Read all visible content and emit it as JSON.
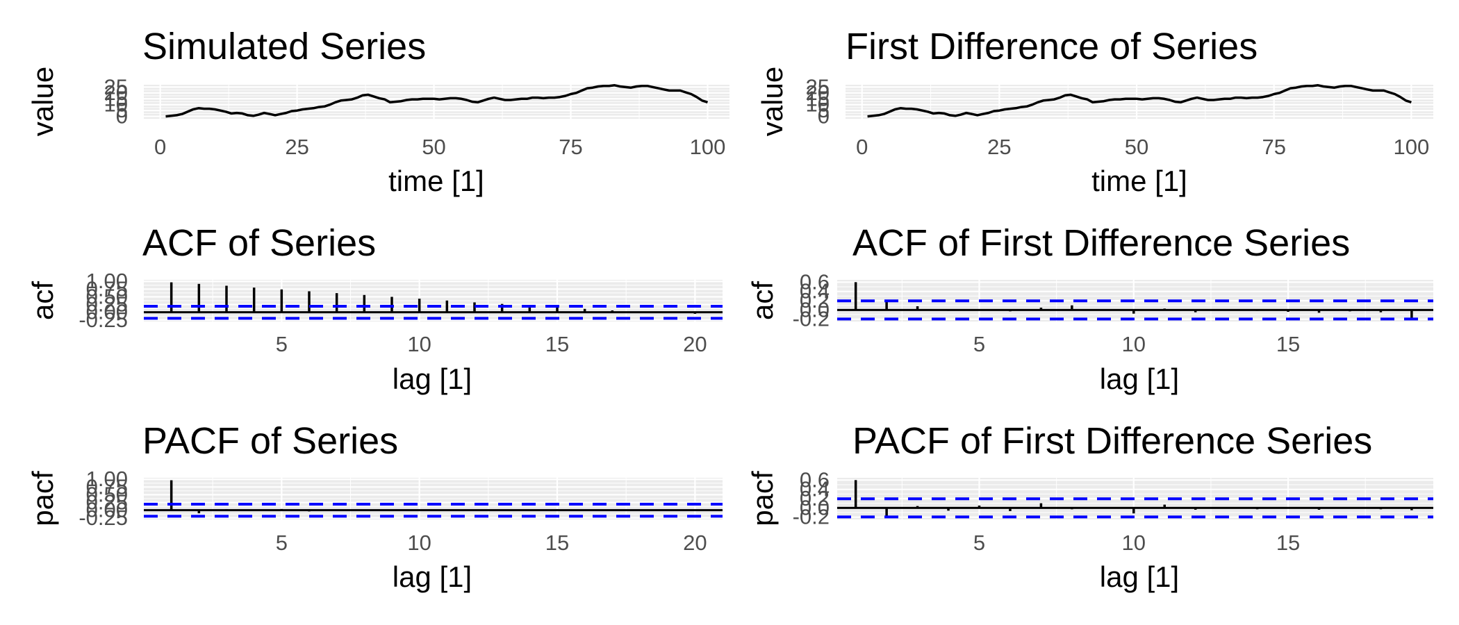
{
  "chart_data": [
    {
      "id": "p1",
      "type": "line",
      "title": "Simulated Series",
      "xlabel": "time [1]",
      "ylabel": "value",
      "xlim": [
        -3,
        104
      ],
      "ylim": [
        -2,
        27
      ],
      "xticks": [
        0,
        25,
        50,
        75,
        100
      ],
      "yticks": [
        0,
        5,
        10,
        15,
        20,
        25
      ],
      "grid": true,
      "series": [
        {
          "x": [
            1,
            2,
            3,
            4,
            5,
            6,
            7,
            8,
            9,
            10,
            11,
            12,
            13,
            14,
            15,
            16,
            17,
            18,
            19,
            20,
            21,
            22,
            23,
            24,
            25,
            26,
            27,
            28,
            29,
            30,
            31,
            32,
            33,
            34,
            35,
            36,
            37,
            38,
            39,
            40,
            41,
            42,
            43,
            44,
            45,
            46,
            47,
            48,
            49,
            50,
            51,
            52,
            53,
            54,
            55,
            56,
            57,
            58,
            59,
            60,
            61,
            62,
            63,
            64,
            65,
            66,
            67,
            68,
            69,
            70,
            71,
            72,
            73,
            74,
            75,
            76,
            77,
            78,
            79,
            80,
            81,
            82,
            83,
            84,
            85,
            86,
            87,
            88,
            89,
            90,
            91,
            92,
            93,
            94,
            95,
            96,
            97,
            98,
            99,
            100
          ],
          "values": [
            0,
            0.5,
            1,
            2,
            4,
            6,
            7,
            6.5,
            6.5,
            6,
            5,
            4,
            2.5,
            3,
            2.5,
            1,
            0.5,
            1.5,
            3,
            2,
            1,
            2,
            3,
            4.5,
            5,
            6,
            6.5,
            7,
            8,
            8.5,
            10,
            12,
            13.5,
            14,
            14.5,
            16,
            18,
            18.5,
            17,
            15.5,
            14.5,
            12,
            12.5,
            13,
            14,
            14.5,
            14.5,
            15,
            15,
            15,
            14.5,
            15,
            15.5,
            15.5,
            15,
            14,
            12.5,
            12,
            13.5,
            15,
            16,
            15,
            14,
            14,
            14.5,
            15,
            15,
            16,
            16,
            15.5,
            16,
            16,
            16.5,
            17.5,
            19,
            20,
            22,
            24,
            24.5,
            25.5,
            26,
            26,
            26.5,
            25.5,
            25,
            24.5,
            25.5,
            26,
            26,
            25,
            24,
            23,
            22,
            22,
            22,
            20.5,
            19,
            16.5,
            13.5,
            12
          ]
        }
      ]
    },
    {
      "id": "p2",
      "type": "line",
      "title": "First Difference of Series",
      "xlabel": "time [1]",
      "ylabel": "value",
      "xlim": [
        -3,
        104
      ],
      "ylim": [
        -2,
        27
      ],
      "xticks": [
        0,
        25,
        50,
        75,
        100
      ],
      "yticks": [
        0,
        5,
        10,
        15,
        20,
        25
      ],
      "grid": true,
      "series": [
        {
          "x": [
            1,
            2,
            3,
            4,
            5,
            6,
            7,
            8,
            9,
            10,
            11,
            12,
            13,
            14,
            15,
            16,
            17,
            18,
            19,
            20,
            21,
            22,
            23,
            24,
            25,
            26,
            27,
            28,
            29,
            30,
            31,
            32,
            33,
            34,
            35,
            36,
            37,
            38,
            39,
            40,
            41,
            42,
            43,
            44,
            45,
            46,
            47,
            48,
            49,
            50,
            51,
            52,
            53,
            54,
            55,
            56,
            57,
            58,
            59,
            60,
            61,
            62,
            63,
            64,
            65,
            66,
            67,
            68,
            69,
            70,
            71,
            72,
            73,
            74,
            75,
            76,
            77,
            78,
            79,
            80,
            81,
            82,
            83,
            84,
            85,
            86,
            87,
            88,
            89,
            90,
            91,
            92,
            93,
            94,
            95,
            96,
            97,
            98,
            99,
            100
          ],
          "values": [
            0,
            0.5,
            1,
            2,
            4,
            6,
            7,
            6.5,
            6.5,
            6,
            5,
            4,
            2.5,
            3,
            2.5,
            1,
            0.5,
            1.5,
            3,
            2,
            1,
            2,
            3,
            4.5,
            5,
            6,
            6.5,
            7,
            8,
            8.5,
            10,
            12,
            13.5,
            14,
            14.5,
            16,
            18,
            18.5,
            17,
            15.5,
            14.5,
            12,
            12.5,
            13,
            14,
            14.5,
            14.5,
            15,
            15,
            15,
            14.5,
            15,
            15.5,
            15.5,
            15,
            14,
            12.5,
            12,
            13.5,
            15,
            16,
            15,
            14,
            14,
            14.5,
            15,
            15,
            16,
            16,
            15.5,
            16,
            16,
            16.5,
            17.5,
            19,
            20,
            22,
            24,
            24.5,
            25.5,
            26,
            26,
            26.5,
            25.5,
            25,
            24.5,
            25.5,
            26,
            26,
            25,
            24,
            23,
            22,
            22,
            22,
            20.5,
            19,
            16.5,
            13.5,
            12
          ]
        }
      ]
    },
    {
      "id": "p3",
      "type": "bar",
      "title": "ACF of Series",
      "xlabel": "lag [1]",
      "ylabel": "acf",
      "xlim": [
        0,
        21
      ],
      "ylim": [
        -0.3,
        1.05
      ],
      "xticks": [
        5,
        10,
        15,
        20
      ],
      "yticks": [
        -0.25,
        0,
        0.25,
        0.5,
        0.75,
        1
      ],
      "ytick_labels": [
        "-0.25",
        "0.00",
        "0.25",
        "0.50",
        "0.75",
        "1.00"
      ],
      "grid": true,
      "ci": 0.196,
      "series": [
        {
          "x": [
            1,
            2,
            3,
            4,
            5,
            6,
            7,
            8,
            9,
            10,
            11,
            12,
            13,
            14,
            15,
            16,
            17,
            18,
            19,
            20
          ],
          "values": [
            0.97,
            0.92,
            0.86,
            0.8,
            0.74,
            0.68,
            0.62,
            0.56,
            0.5,
            0.44,
            0.38,
            0.32,
            0.27,
            0.22,
            0.16,
            0.11,
            0.06,
            0.02,
            -0.02,
            -0.05
          ]
        }
      ]
    },
    {
      "id": "p4",
      "type": "bar",
      "title": "ACF of First Difference Series",
      "xlabel": "lag [1]",
      "ylabel": "acf",
      "xlim": [
        0.4,
        19.7
      ],
      "ylim": [
        -0.25,
        0.65
      ],
      "xticks": [
        5,
        10,
        15
      ],
      "yticks": [
        -0.2,
        0,
        0.2,
        0.4,
        0.6
      ],
      "ytick_labels": [
        "-0.2",
        "0.0",
        "0.2",
        "0.4",
        "0.6"
      ],
      "grid": true,
      "ci": 0.196,
      "series": [
        {
          "x": [
            1,
            2,
            3,
            4,
            5,
            6,
            7,
            8,
            9,
            10,
            11,
            12,
            13,
            14,
            15,
            16,
            17,
            18,
            19
          ],
          "values": [
            0.6,
            0.2,
            0.08,
            -0.02,
            0.01,
            -0.03,
            0.05,
            0.1,
            0.02,
            -0.08,
            0.03,
            -0.05,
            0.01,
            -0.02,
            -0.04,
            -0.06,
            -0.03,
            -0.05,
            -0.2
          ]
        }
      ]
    },
    {
      "id": "p5",
      "type": "bar",
      "title": "PACF of Series",
      "xlabel": "lag [1]",
      "ylabel": "pacf",
      "xlim": [
        0,
        21
      ],
      "ylim": [
        -0.3,
        1.05
      ],
      "xticks": [
        5,
        10,
        15,
        20
      ],
      "yticks": [
        -0.25,
        0,
        0.25,
        0.5,
        0.75,
        1
      ],
      "ytick_labels": [
        "-0.25",
        "0.00",
        "0.25",
        "0.50",
        "0.75",
        "1.00"
      ],
      "grid": true,
      "ci": 0.196,
      "series": [
        {
          "x": [
            1,
            2,
            3,
            4,
            5,
            6,
            7,
            8,
            9,
            10,
            11,
            12,
            13,
            14,
            15,
            16,
            17,
            18,
            19,
            20
          ],
          "values": [
            0.97,
            -0.1,
            0.03,
            -0.02,
            0.04,
            -0.04,
            0.02,
            -0.03,
            0.01,
            0.02,
            -0.02,
            0.01,
            -0.03,
            0.02,
            0.03,
            -0.02,
            0.01,
            -0.02,
            0.02,
            -0.01
          ]
        }
      ]
    },
    {
      "id": "p6",
      "type": "bar",
      "title": "PACF of First Difference Series",
      "xlabel": "lag [1]",
      "ylabel": "pacf",
      "xlim": [
        0.4,
        19.7
      ],
      "ylim": [
        -0.25,
        0.65
      ],
      "xticks": [
        5,
        10,
        15
      ],
      "yticks": [
        -0.2,
        0,
        0.2,
        0.4,
        0.6
      ],
      "ytick_labels": [
        "-0.2",
        "0.0",
        "0.2",
        "0.4",
        "0.6"
      ],
      "grid": true,
      "ci": 0.196,
      "series": [
        {
          "x": [
            1,
            2,
            3,
            4,
            5,
            6,
            7,
            8,
            9,
            10,
            11,
            12,
            13,
            14,
            15,
            16,
            17,
            18,
            19
          ],
          "values": [
            0.6,
            -0.2,
            0.04,
            -0.06,
            0.05,
            -0.07,
            0.1,
            -0.03,
            0.02,
            -0.12,
            0.07,
            -0.04,
            0.02,
            -0.03,
            0.01,
            -0.04,
            0.02,
            -0.03,
            -0.05
          ]
        }
      ]
    }
  ]
}
